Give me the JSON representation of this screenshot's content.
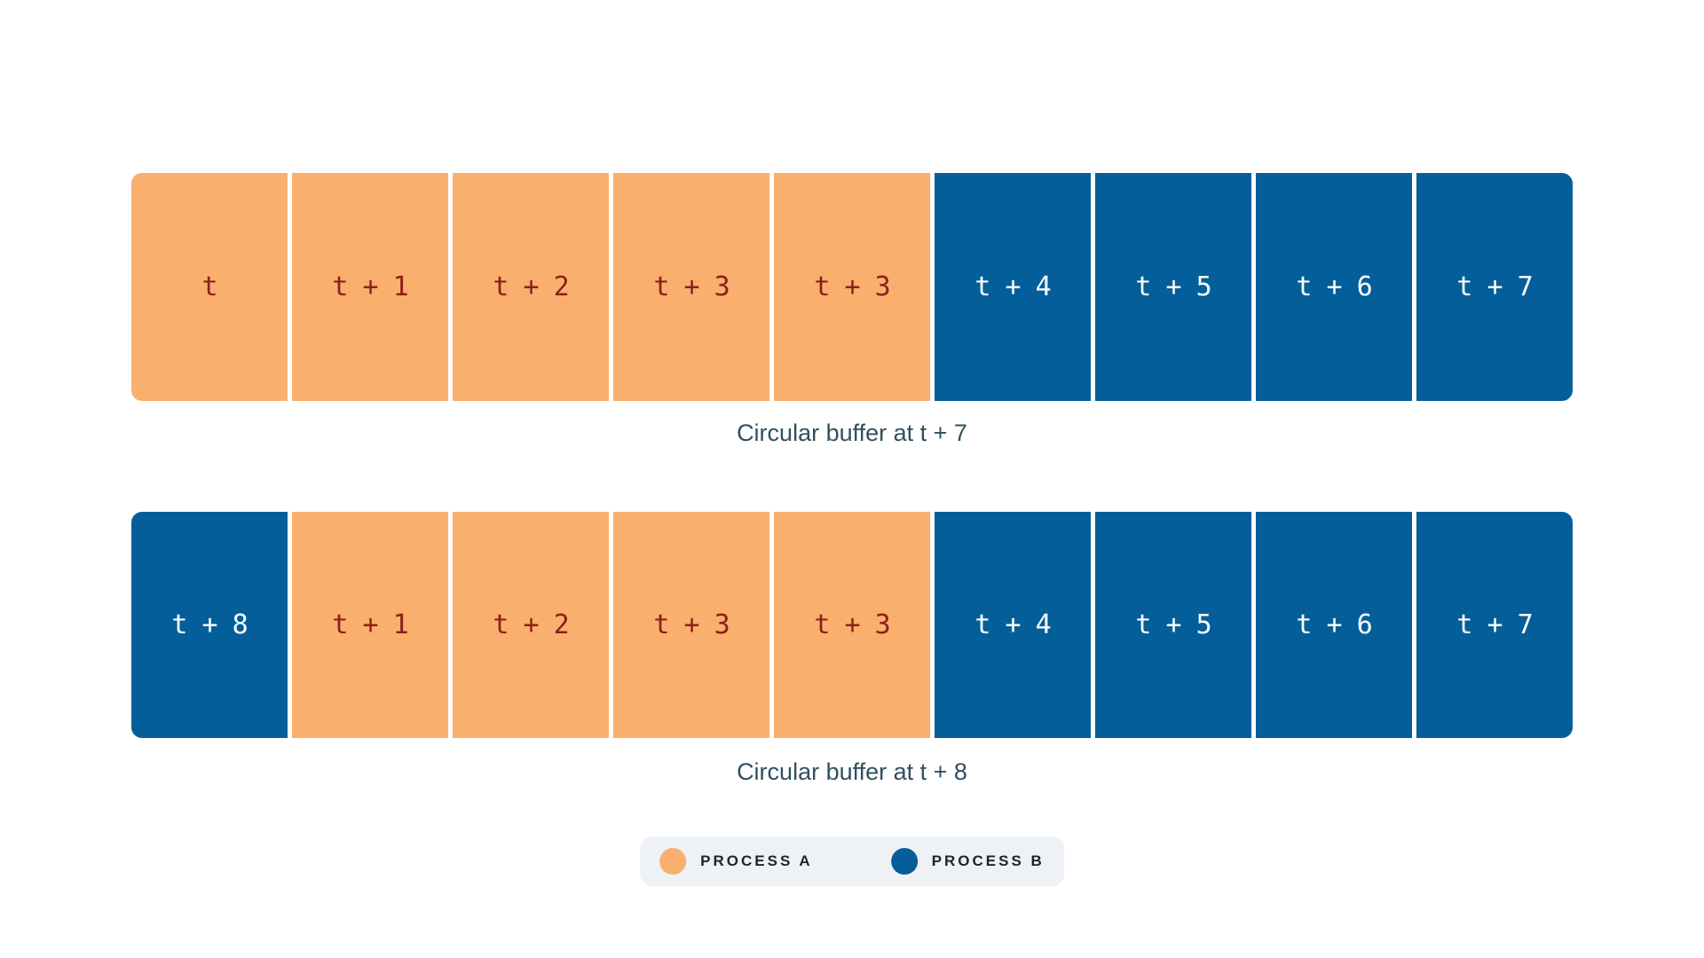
{
  "page": {
    "background": "#ffffff"
  },
  "diagram": {
    "rows": [
      {
        "caption": "Circular buffer at t + 7",
        "cells": [
          {
            "label": "t",
            "process": "A"
          },
          {
            "label": "t + 1",
            "process": "A"
          },
          {
            "label": "t + 2",
            "process": "A"
          },
          {
            "label": "t + 3",
            "process": "A"
          },
          {
            "label": "t + 3",
            "process": "A"
          },
          {
            "label": "t + 4",
            "process": "B"
          },
          {
            "label": "t + 5",
            "process": "B"
          },
          {
            "label": "t + 6",
            "process": "B"
          },
          {
            "label": "t + 7",
            "process": "B"
          }
        ]
      },
      {
        "caption": "Circular buffer at t + 8",
        "cells": [
          {
            "label": "t + 8",
            "process": "B"
          },
          {
            "label": "t + 1",
            "process": "A"
          },
          {
            "label": "t + 2",
            "process": "A"
          },
          {
            "label": "t + 3",
            "process": "A"
          },
          {
            "label": "t + 3",
            "process": "A"
          },
          {
            "label": "t + 4",
            "process": "B"
          },
          {
            "label": "t + 5",
            "process": "B"
          },
          {
            "label": "t + 6",
            "process": "B"
          },
          {
            "label": "t + 7",
            "process": "B"
          }
        ]
      }
    ],
    "legend": {
      "items": [
        {
          "label": "PROCESS A",
          "process": "A"
        },
        {
          "label": "PROCESS B",
          "process": "B"
        }
      ]
    },
    "colors": {
      "process_a_fill": "#F9B06E",
      "process_a_text": "#8E1E1C",
      "process_b_fill": "#045E99",
      "process_b_text": "#FDFEFE",
      "caption_text": "#31505F",
      "legend_background": "#EEF1F5",
      "legend_text": "#1B2530",
      "page_background": "#FFFFFF"
    }
  }
}
